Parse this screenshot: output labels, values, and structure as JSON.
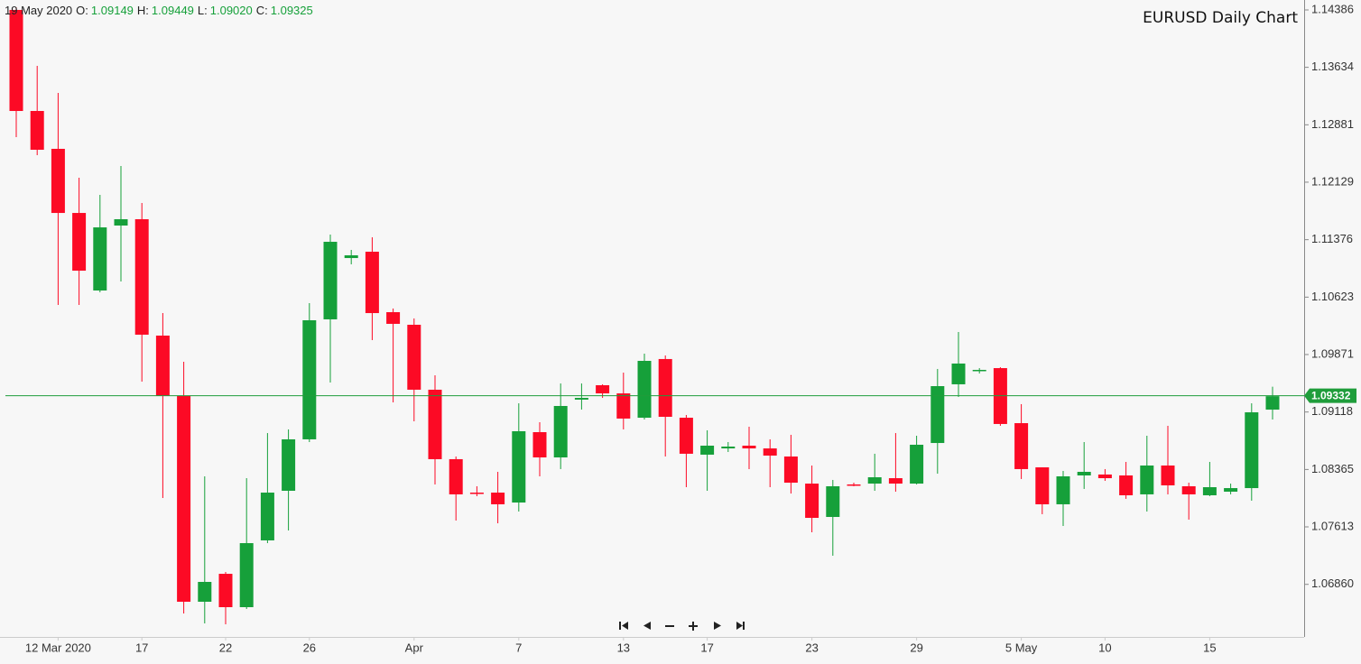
{
  "chart_data": {
    "type": "candlestick",
    "title": "EURUSD Daily Chart",
    "header": {
      "date": "19 May 2020",
      "ohlc": [
        {
          "label": "O:",
          "value": "1.09149"
        },
        {
          "label": "H:",
          "value": "1.09449"
        },
        {
          "label": "L:",
          "value": "1.09020"
        },
        {
          "label": "C:",
          "value": "1.09325"
        }
      ]
    },
    "categories": [
      null,
      null,
      "12 Mar 2020",
      null,
      null,
      null,
      "17",
      null,
      null,
      null,
      "22",
      null,
      null,
      null,
      "26",
      null,
      null,
      null,
      null,
      "Apr",
      null,
      null,
      null,
      null,
      "7",
      null,
      null,
      null,
      null,
      "13",
      null,
      null,
      null,
      "17",
      null,
      null,
      null,
      null,
      "23",
      null,
      null,
      null,
      null,
      "29",
      null,
      null,
      null,
      null,
      "5 May",
      null,
      null,
      null,
      "10",
      null,
      null,
      null,
      null,
      "15",
      null,
      null,
      null
    ],
    "open": [
      1.14386,
      1.13062,
      1.12566,
      1.11726,
      1.1071,
      1.11561,
      1.11644,
      1.10119,
      1.09327,
      1.06632,
      1.06998,
      1.06561,
      1.07436,
      1.08086,
      1.0876,
      1.10332,
      1.11135,
      1.11218,
      1.10426,
      1.10261,
      1.0941,
      1.085,
      1.08062,
      1.08062,
      1.07932,
      1.08854,
      1.08523,
      1.0928,
      1.09469,
      1.09362,
      1.09043,
      1.09812,
      1.09043,
      1.08559,
      1.08641,
      1.08677,
      1.08641,
      1.08535,
      1.0818,
      1.07743,
      1.08169,
      1.0818,
      1.08251,
      1.0818,
      1.08712,
      1.09481,
      1.09658,
      1.09693,
      1.08972,
      1.08393,
      1.07909,
      1.08287,
      1.08299,
      1.08287,
      1.08039,
      1.08417,
      1.08145,
      1.08027,
      1.08074,
      1.08121,
      1.09149
    ],
    "high": [
      1.14421,
      1.13653,
      1.13299,
      1.12187,
      1.11963,
      1.12341,
      1.11856,
      1.10414,
      1.09776,
      1.08275,
      1.07022,
      1.08251,
      1.08842,
      1.0889,
      1.10544,
      1.11443,
      1.11242,
      1.11407,
      1.10474,
      1.10344,
      1.09599,
      1.08535,
      1.08145,
      1.08334,
      1.09232,
      1.08984,
      1.09492,
      1.09492,
      1.09481,
      1.09634,
      1.09883,
      1.09859,
      1.09079,
      1.08878,
      1.08724,
      1.08925,
      1.0876,
      1.08819,
      1.08417,
      1.08228,
      1.08192,
      1.08571,
      1.08842,
      1.08807,
      1.09682,
      1.10166,
      1.09693,
      1.09705,
      1.09221,
      1.08393,
      1.08346,
      1.08724,
      1.0837,
      1.08464,
      1.08807,
      1.08937,
      1.08192,
      1.08464,
      1.0818,
      1.09232,
      1.09449
    ],
    "low": [
      1.12719,
      1.12483,
      1.10521,
      1.10521,
      1.10686,
      1.10828,
      1.09516,
      1.07991,
      1.06478,
      1.06348,
      1.06337,
      1.06537,
      1.074,
      1.07566,
      1.08724,
      1.09504,
      1.11053,
      1.1006,
      1.09244,
      1.08996,
      1.08169,
      1.07696,
      1.08015,
      1.0766,
      1.07814,
      1.08275,
      1.0837,
      1.0915,
      1.09303,
      1.0889,
      1.0902,
      1.08535,
      1.08133,
      1.08086,
      1.08594,
      1.0837,
      1.08133,
      1.0805,
      1.07542,
      1.07235,
      1.08145,
      1.08086,
      1.08074,
      1.08169,
      1.0831,
      1.09315,
      1.09623,
      1.08937,
      1.0824,
      1.07779,
      1.07625,
      1.0811,
      1.08216,
      1.0798,
      1.07814,
      1.08039,
      1.07708,
      1.08015,
      1.08039,
      1.07956,
      1.0902
    ],
    "close": [
      1.13062,
      1.12554,
      1.11726,
      1.1097,
      1.11537,
      1.11644,
      1.10131,
      1.09327,
      1.06632,
      1.06892,
      1.06561,
      1.074,
      1.08062,
      1.0876,
      1.1032,
      1.11348,
      1.11171,
      1.10414,
      1.10273,
      1.0941,
      1.085,
      1.08039,
      1.0805,
      1.07909,
      1.08866,
      1.08523,
      1.09197,
      1.09303,
      1.09362,
      1.09032,
      1.09788,
      1.09055,
      1.08571,
      1.08677,
      1.08665,
      1.08641,
      1.08547,
      1.08192,
      1.07731,
      1.08145,
      1.08157,
      1.08263,
      1.0818,
      1.08689,
      1.09457,
      1.09753,
      1.0967,
      1.08961,
      1.0837,
      1.07909,
      1.08275,
      1.08334,
      1.08251,
      1.08027,
      1.08417,
      1.08157,
      1.08039,
      1.08133,
      1.08121,
      1.09114,
      1.09325
    ],
    "up_color": "#16a03a",
    "down_color": "#fc0a25",
    "last_price": 1.09332,
    "last_price_color": "#1f9d3b",
    "ylim": [
      1.06171,
      1.14516
    ],
    "yticks": [
      1.14386,
      1.13634,
      1.12881,
      1.12129,
      1.11376,
      1.10623,
      1.09871,
      1.09118,
      1.08365,
      1.07613,
      {
        "value": 1.0686,
        "label": "1.06860"
      }
    ],
    "grid": false
  }
}
